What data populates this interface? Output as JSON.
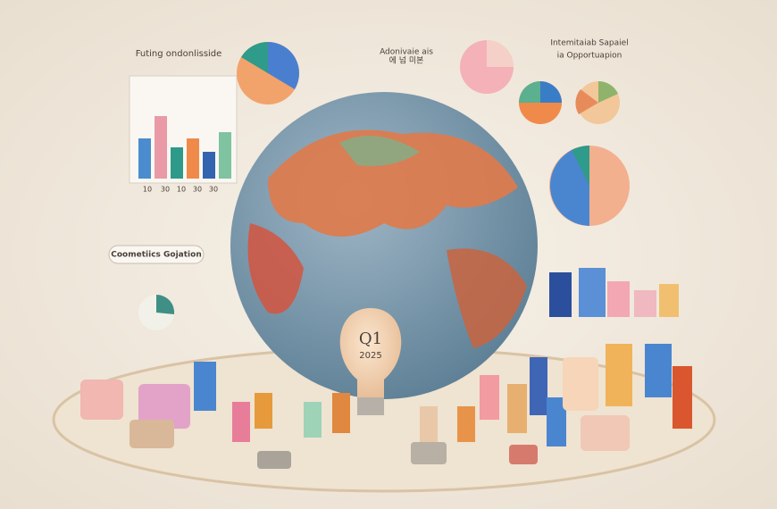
{
  "labels": {
    "top_left": "Futing ondonlisside",
    "top_center_1": "Adonivaie ais",
    "top_center_2": "에 넘 미본",
    "top_right_1": "Intemitaiab Sapaiel",
    "top_right_2": "ia Opportuapion",
    "banner": "Coometiics Gojation",
    "bulb_1": "Q1",
    "bulb_2": "2025"
  },
  "bar_chart_labels": [
    "10",
    "30",
    "10",
    "30",
    "30"
  ]
}
